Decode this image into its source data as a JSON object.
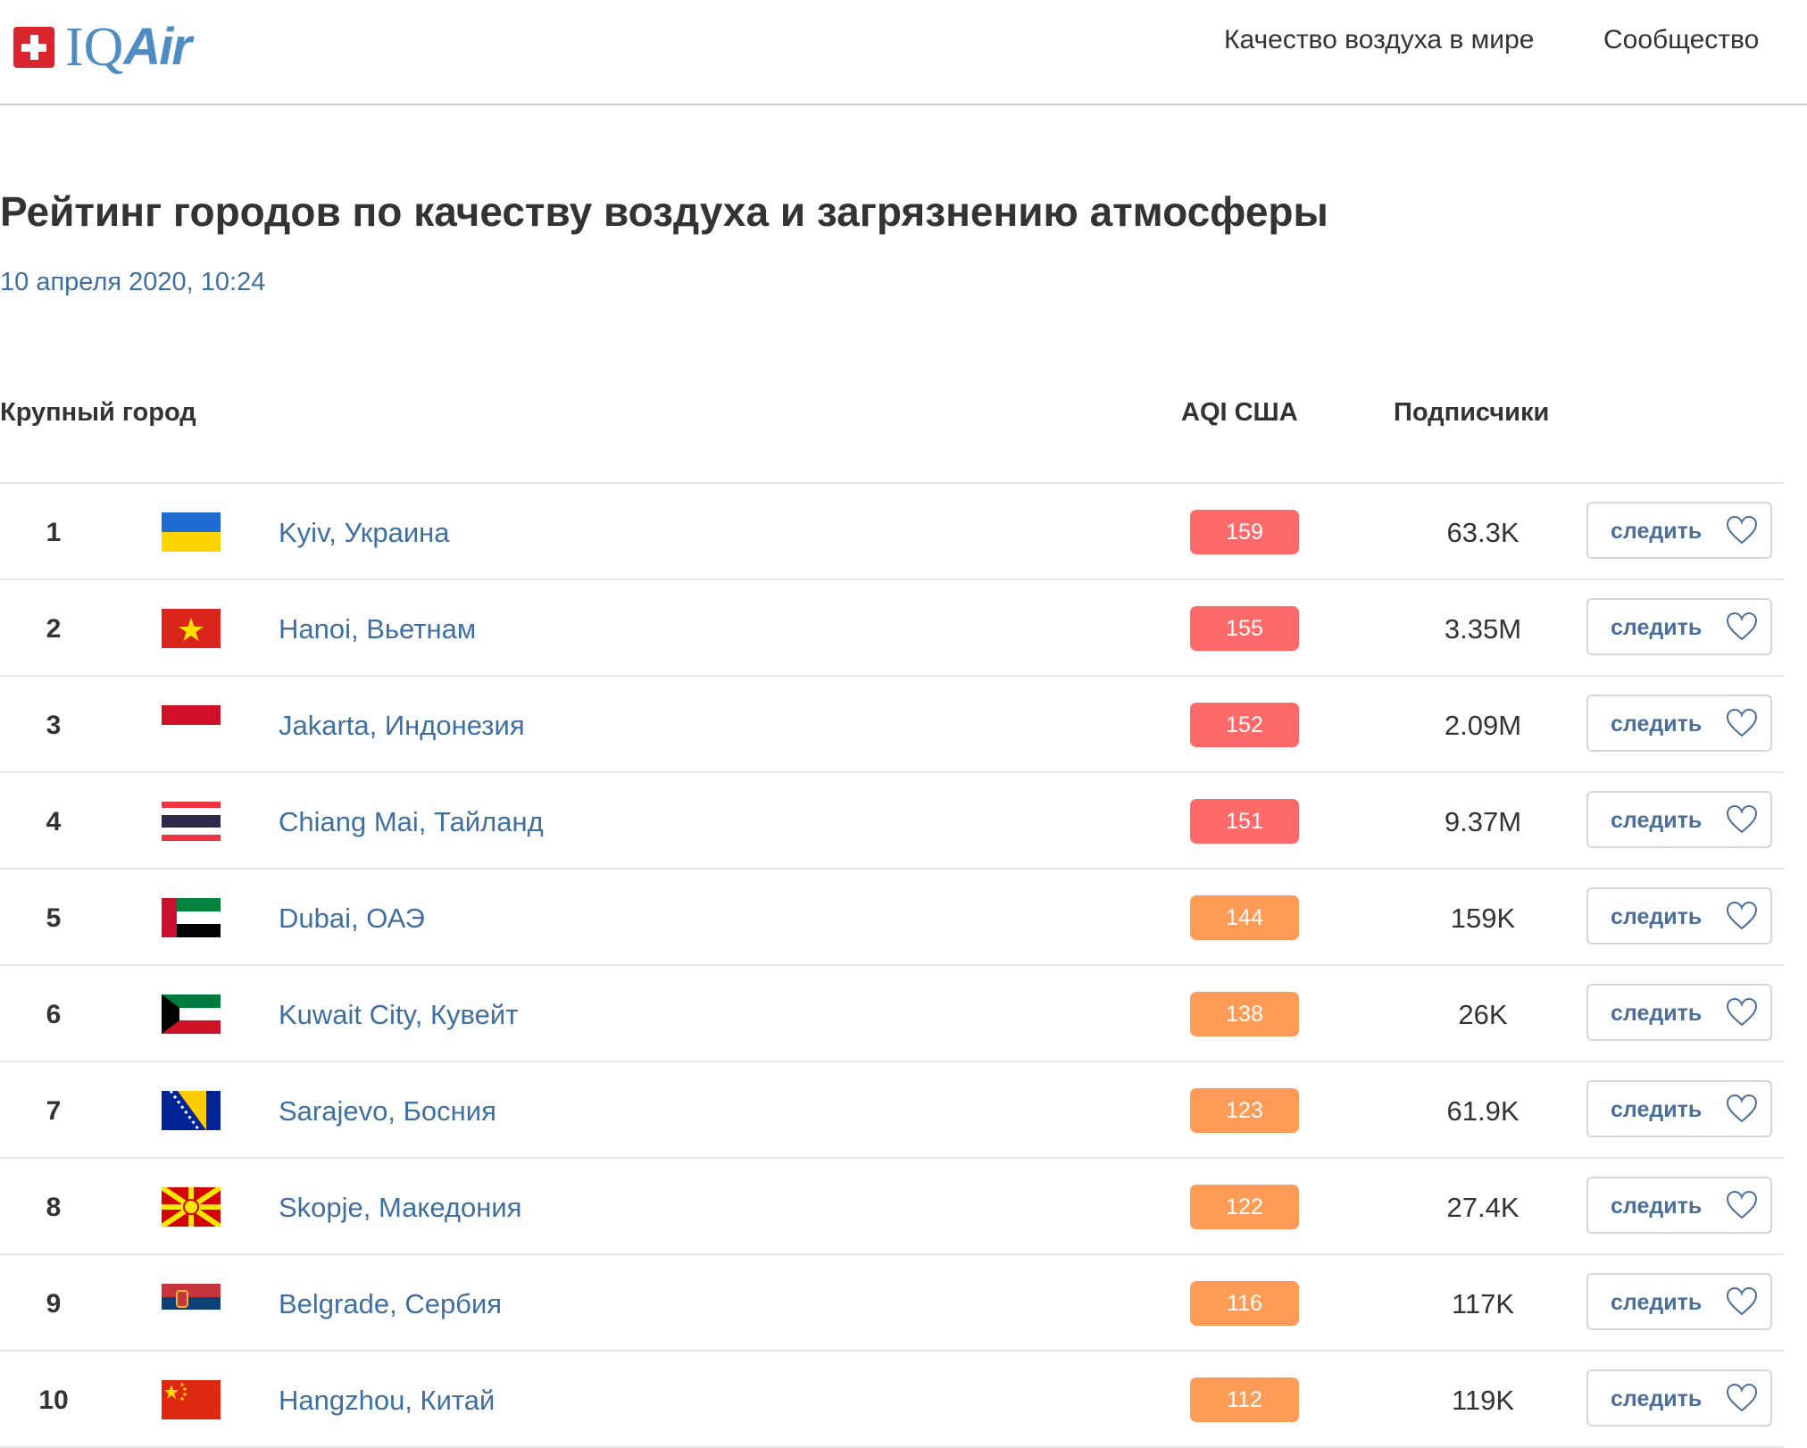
{
  "header": {
    "logo_text": "IQAir",
    "nav": [
      "Качество воздуха в мире",
      "Сообщество"
    ]
  },
  "page": {
    "title": "Рейтинг городов по качеству воздуха и загрязнению атмосферы",
    "date": "10 апреля 2020, 10:24"
  },
  "table": {
    "headers": {
      "city": "Крупный город",
      "aqi": "AQI США",
      "followers": "Подписчики"
    },
    "follow_label": "следить",
    "colors": {
      "unhealthy": "#fe6a69",
      "sensitive": "#fe9b57"
    },
    "rows": [
      {
        "rank": "1",
        "flag": "ua",
        "city": "Kyiv, Украина",
        "aqi": "159",
        "level": "unhealthy",
        "followers": "63.3K"
      },
      {
        "rank": "2",
        "flag": "vn",
        "city": "Hanoi, Вьетнам",
        "aqi": "155",
        "level": "unhealthy",
        "followers": "3.35M"
      },
      {
        "rank": "3",
        "flag": "id",
        "city": "Jakarta, Индонезия",
        "aqi": "152",
        "level": "unhealthy",
        "followers": "2.09M"
      },
      {
        "rank": "4",
        "flag": "th",
        "city": "Chiang Mai, Тайланд",
        "aqi": "151",
        "level": "unhealthy",
        "followers": "9.37M"
      },
      {
        "rank": "5",
        "flag": "ae",
        "city": "Dubai, ОАЭ",
        "aqi": "144",
        "level": "sensitive",
        "followers": "159K"
      },
      {
        "rank": "6",
        "flag": "kw",
        "city": "Kuwait City, Кувейт",
        "aqi": "138",
        "level": "sensitive",
        "followers": "26K"
      },
      {
        "rank": "7",
        "flag": "ba",
        "city": "Sarajevo, Босния",
        "aqi": "123",
        "level": "sensitive",
        "followers": "61.9K"
      },
      {
        "rank": "8",
        "flag": "mk",
        "city": "Skopje, Македония",
        "aqi": "122",
        "level": "sensitive",
        "followers": "27.4K"
      },
      {
        "rank": "9",
        "flag": "rs",
        "city": "Belgrade, Сербия",
        "aqi": "116",
        "level": "sensitive",
        "followers": "117K"
      },
      {
        "rank": "10",
        "flag": "cn",
        "city": "Hangzhou, Китай",
        "aqi": "112",
        "level": "sensitive",
        "followers": "119K"
      }
    ]
  }
}
